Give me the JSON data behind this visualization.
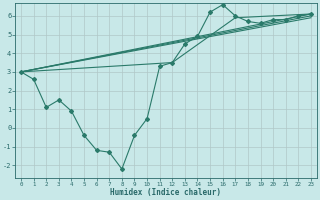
{
  "background_color": "#c8e8e8",
  "grid_color": "#b0c8c8",
  "line_color": "#2a7a6a",
  "xlabel": "Humidex (Indice chaleur)",
  "xlim": [
    -0.5,
    23.5
  ],
  "ylim": [
    -2.7,
    6.7
  ],
  "yticks": [
    -2,
    -1,
    0,
    1,
    2,
    3,
    4,
    5,
    6
  ],
  "xticks": [
    0,
    1,
    2,
    3,
    4,
    5,
    6,
    7,
    8,
    9,
    10,
    11,
    12,
    13,
    14,
    15,
    16,
    17,
    18,
    19,
    20,
    21,
    22,
    23
  ],
  "jagged": {
    "x": [
      0,
      1,
      2,
      3,
      4,
      5,
      6,
      7,
      8,
      9,
      10,
      11,
      12,
      13,
      14,
      15,
      16,
      17,
      18,
      19,
      20,
      21,
      22,
      23
    ],
    "y": [
      3.0,
      2.6,
      1.1,
      1.5,
      0.9,
      -0.4,
      -1.2,
      -1.3,
      -2.2,
      -0.4,
      0.5,
      3.3,
      3.5,
      4.5,
      4.9,
      6.2,
      6.6,
      6.0,
      5.7,
      5.6,
      5.8,
      5.8,
      6.0,
      6.1
    ]
  },
  "lines": [
    {
      "x": [
        0,
        23
      ],
      "y": [
        3.0,
        6.1
      ]
    },
    {
      "x": [
        0,
        23
      ],
      "y": [
        3.0,
        6.0
      ]
    },
    {
      "x": [
        0,
        23
      ],
      "y": [
        3.0,
        5.9
      ]
    },
    {
      "x": [
        0,
        12,
        17,
        23
      ],
      "y": [
        3.0,
        3.5,
        5.9,
        6.1
      ]
    }
  ]
}
